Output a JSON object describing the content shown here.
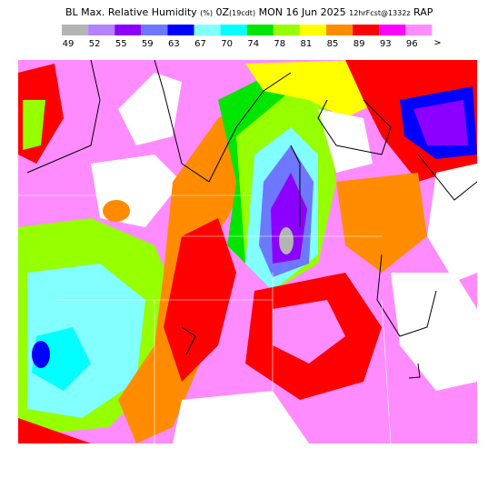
{
  "header": {
    "title": "BL Max. Relative Humidity",
    "units": "(%)",
    "time": "0Z",
    "local_time": "(19cdt)",
    "date": "MON 16 Jun 2025",
    "forecast": "12hrFcst@1332z",
    "model": "RAP"
  },
  "legend": {
    "items": [
      {
        "value": 49,
        "color": "#b4b4b4"
      },
      {
        "value": 52,
        "color": "#b482ff"
      },
      {
        "value": 55,
        "color": "#8c00ff"
      },
      {
        "value": 59,
        "color": "#6e78ff"
      },
      {
        "value": 63,
        "color": "#0000ff"
      },
      {
        "value": 67,
        "color": "#82ffff"
      },
      {
        "value": 70,
        "color": "#00ffff"
      },
      {
        "value": 74,
        "color": "#00e600"
      },
      {
        "value": 78,
        "color": "#96ff00"
      },
      {
        "value": 81,
        "color": "#ffff00"
      },
      {
        "value": 85,
        "color": "#ff8c00"
      },
      {
        "value": 89,
        "color": "#ff0000"
      },
      {
        "value": 93,
        "color": "#ff00ff"
      },
      {
        "value": 96,
        "color": "#ff8cff"
      }
    ],
    "overflow": ">"
  }
}
